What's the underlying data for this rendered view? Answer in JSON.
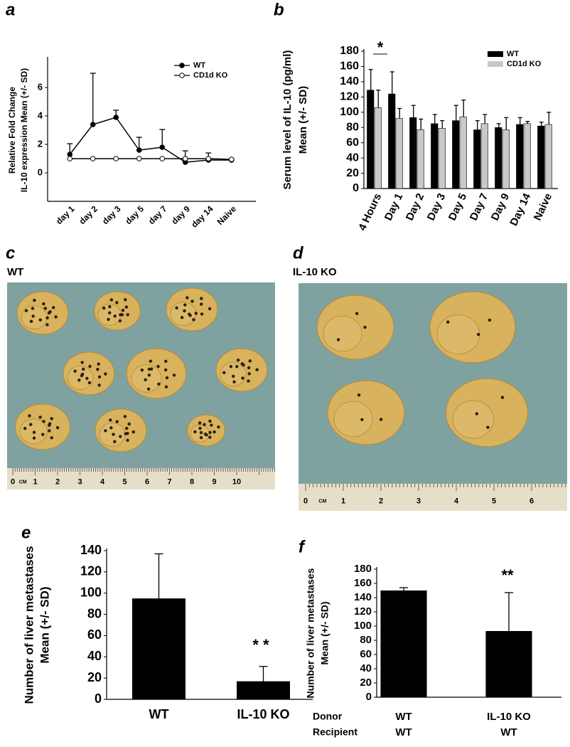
{
  "chart_data": [
    {
      "panel": "a",
      "type": "line",
      "y_label": [
        "Relative Fold Change",
        "IL-10 expression Mean (+/- SD)"
      ],
      "categories": [
        "day 1",
        "day 2",
        "day 3",
        "day 5",
        "day 7",
        "day 9",
        "day 14",
        "Naive"
      ],
      "series": [
        {
          "name": "WT",
          "color": "#000000",
          "marker_fill": "#000000",
          "values": [
            1.3,
            3.4,
            3.9,
            1.6,
            1.8,
            0.75,
            0.9,
            0.9
          ],
          "errors": [
            0.75,
            3.6,
            0.5,
            0.9,
            1.25,
            0.8,
            0.5,
            0.1
          ]
        },
        {
          "name": "CD1d KO",
          "color": "#000000",
          "marker_fill": "#ffffff",
          "values": [
            1,
            1,
            1,
            1,
            1,
            1,
            1,
            0.95
          ]
        }
      ],
      "ylim": [
        -2,
        8
      ],
      "yticks": [
        0,
        2,
        4,
        6
      ]
    },
    {
      "panel": "b",
      "type": "bar",
      "y_label": [
        "Serum level of IL-10 (pg/ml)",
        "Mean (+/- SD)"
      ],
      "annotation": "*",
      "categories": [
        "4 Hours",
        "Day 1",
        "Day 2",
        "Day 3",
        "Day 5",
        "Day 7",
        "Day 9",
        "Day 14",
        "Naive"
      ],
      "series": [
        {
          "name": "WT",
          "color": "#000000",
          "values": [
            129,
            124,
            93,
            85,
            89,
            77,
            80,
            84,
            82
          ],
          "errors": [
            27,
            29,
            16,
            12,
            20,
            12,
            5,
            9,
            5
          ]
        },
        {
          "name": "CD1d KO",
          "color": "#c8c8c8",
          "values": [
            106,
            92,
            77,
            79,
            94,
            85,
            77,
            85,
            84
          ],
          "errors": [
            23,
            13,
            14,
            10,
            22,
            12,
            16,
            3,
            16
          ]
        }
      ],
      "ylim": [
        0,
        180
      ],
      "yticks": [
        0,
        20,
        40,
        60,
        80,
        100,
        120,
        140,
        160,
        180
      ]
    },
    {
      "panel": "e",
      "type": "bar",
      "y_label": [
        "Number of liver metastases",
        "Mean (+/- SD)"
      ],
      "annotation": "* *",
      "categories": [
        "WT",
        "IL-10 KO"
      ],
      "values": [
        95,
        17
      ],
      "errors": [
        42,
        14
      ],
      "color": "#000000",
      "ylim": [
        0,
        140
      ],
      "yticks": [
        0,
        20,
        40,
        60,
        80,
        100,
        120,
        140
      ]
    },
    {
      "panel": "f",
      "type": "bar",
      "y_label": [
        "Number of liver metastases",
        "Mean (+/- SD)"
      ],
      "annotation": "**",
      "row_labels": [
        "Donor",
        "Recipient"
      ],
      "categories": [
        "WT",
        "IL-10 KO"
      ],
      "recipients": [
        "WT",
        "WT"
      ],
      "values": [
        150,
        93
      ],
      "errors": [
        4,
        54
      ],
      "color": "#000000",
      "ylim": [
        0,
        180
      ],
      "yticks": [
        0,
        20,
        40,
        60,
        80,
        100,
        120,
        140,
        160,
        180
      ]
    }
  ],
  "photos": [
    {
      "panel": "c",
      "title": "WT",
      "ruler_labels": [
        "0",
        "CM",
        "1",
        "2",
        "3",
        "4",
        "5",
        "6",
        "7",
        "8",
        "9",
        "10"
      ]
    },
    {
      "panel": "d",
      "title": "IL-10 KO",
      "ruler_labels": [
        "0",
        "CM",
        "1",
        "2",
        "3",
        "4",
        "5",
        "6"
      ]
    }
  ]
}
